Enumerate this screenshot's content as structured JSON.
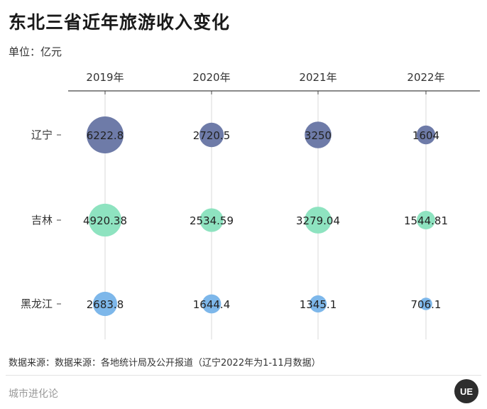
{
  "header": {
    "title": "东北三省近年旅游收入变化",
    "unit": "单位：亿元"
  },
  "footer": {
    "source": "数据来源：数据来源：各地统计局及公开报道（辽宁2022年为1-11月数据）",
    "brand": "城市进化论",
    "logo_text": "UE"
  },
  "chart_data": {
    "type": "bubble",
    "title": "东北三省近年旅游收入变化",
    "unit": "亿元",
    "columns": [
      "2019年",
      "2020年",
      "2021年",
      "2022年"
    ],
    "rows": [
      "辽宁",
      "吉林",
      "黑龙江"
    ],
    "series": [
      {
        "name": "辽宁",
        "color": "#6e7ba8",
        "values": [
          6222.8,
          2720.5,
          3250,
          1604
        ],
        "labels": [
          "6222.8",
          "2720.5",
          "3250",
          "1604"
        ]
      },
      {
        "name": "吉林",
        "color": "#8ee3c0",
        "values": [
          4920.38,
          2534.59,
          3279.04,
          1544.81
        ],
        "labels": [
          "4920.38",
          "2534.59",
          "3279.04",
          "1544.81"
        ]
      },
      {
        "name": "黑龙江",
        "color": "#7db7ea",
        "values": [
          2683.8,
          1644.4,
          1345.1,
          706.1
        ],
        "labels": [
          "2683.8",
          "1644.4",
          "1345.1",
          "706.1"
        ]
      }
    ],
    "grid": true
  }
}
